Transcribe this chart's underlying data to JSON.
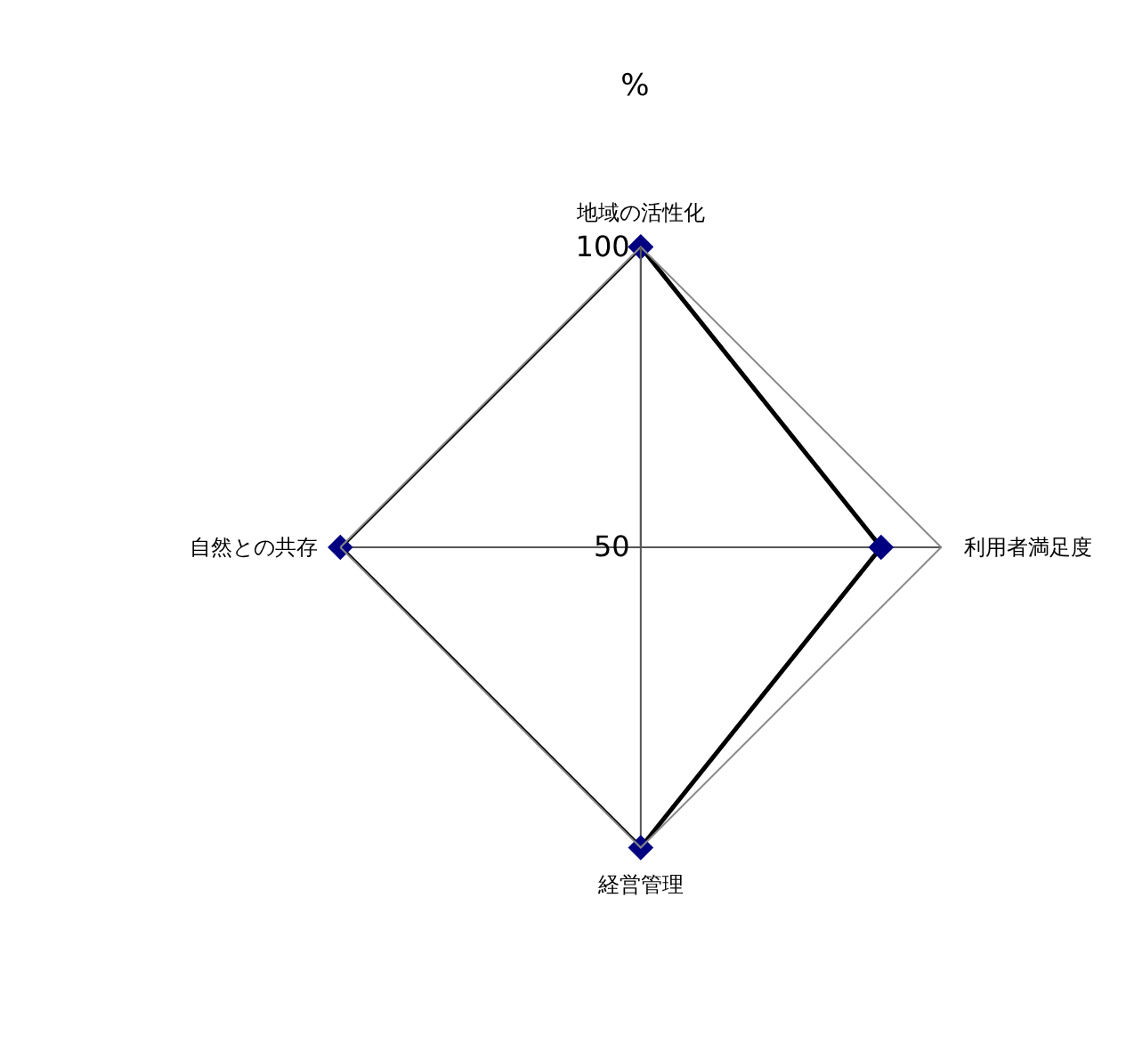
{
  "chart_data": {
    "type": "radar",
    "title": "%",
    "categories": [
      "地域の活性化",
      "利用者満足度",
      "経営管理",
      "自然との共存"
    ],
    "series": [
      {
        "color": "#000000",
        "colors": [
          "#000080",
          "#000080",
          "#000080",
          "#000080"
        ],
        "values": [
          100,
          90,
          100,
          100
        ]
      }
    ],
    "ylim": [
      50,
      100
    ],
    "yticks": [
      50,
      100
    ],
    "grid": true,
    "marker": "diamond",
    "line_style": "solid"
  }
}
